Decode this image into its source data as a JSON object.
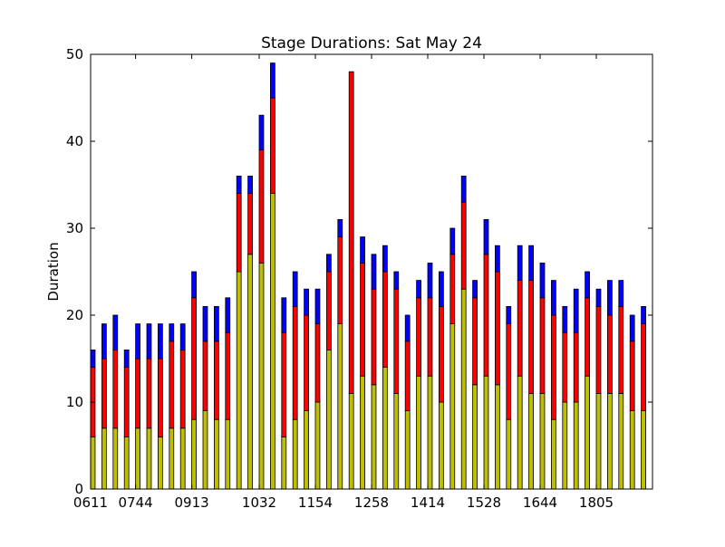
{
  "chart_data": {
    "type": "bar",
    "stacked": true,
    "title": "Stage Durations: Sat May 24",
    "xlabel": "",
    "ylabel": "Duration",
    "ylim": [
      0,
      50
    ],
    "yticks": [
      0,
      10,
      20,
      30,
      40,
      50
    ],
    "xticks": [
      "0611",
      "0744",
      "0913",
      "1032",
      "1154",
      "1258",
      "1414",
      "1528",
      "1644",
      "1805"
    ],
    "xtick_bar_index": [
      0,
      4,
      9,
      15,
      20,
      25,
      30,
      35,
      40,
      45
    ],
    "grid": false,
    "legend": "none",
    "series": [
      {
        "color": "#bfbf00",
        "values": [
          6,
          7,
          7,
          6,
          7,
          7,
          6,
          7,
          7,
          8,
          9,
          8,
          8,
          25,
          27,
          26,
          34,
          6,
          8,
          9,
          10,
          16,
          19,
          11,
          13,
          12,
          14,
          11,
          9,
          13,
          13,
          10,
          19,
          23,
          12,
          13,
          12,
          8,
          13,
          11,
          11,
          8,
          10,
          10,
          13,
          11,
          11,
          11,
          9,
          9
        ]
      },
      {
        "color": "#ff0000",
        "values": [
          8,
          8,
          9,
          8,
          8,
          8,
          9,
          10,
          9,
          14,
          8,
          9,
          10,
          9,
          7,
          13,
          11,
          12,
          13,
          11,
          9,
          9,
          10,
          37,
          13,
          11,
          11,
          12,
          8,
          9,
          9,
          11,
          8,
          10,
          10,
          14,
          13,
          11,
          11,
          13,
          11,
          12,
          8,
          8,
          9,
          10,
          9,
          10,
          8,
          10
        ]
      },
      {
        "color": "#0000ff",
        "values": [
          2,
          4,
          4,
          2,
          4,
          4,
          4,
          2,
          3,
          3,
          4,
          4,
          4,
          2,
          2,
          4,
          4,
          4,
          4,
          3,
          4,
          2,
          2,
          0,
          3,
          4,
          3,
          2,
          3,
          2,
          4,
          4,
          3,
          3,
          2,
          4,
          3,
          2,
          4,
          4,
          4,
          4,
          3,
          5,
          3,
          2,
          4,
          3,
          3,
          2
        ]
      }
    ]
  }
}
